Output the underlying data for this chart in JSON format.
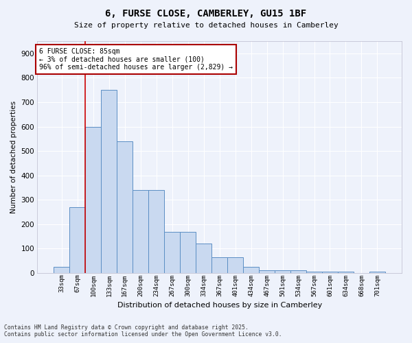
{
  "title1": "6, FURSE CLOSE, CAMBERLEY, GU15 1BF",
  "title2": "Size of property relative to detached houses in Camberley",
  "xlabel": "Distribution of detached houses by size in Camberley",
  "ylabel": "Number of detached properties",
  "categories": [
    "33sqm",
    "67sqm",
    "100sqm",
    "133sqm",
    "167sqm",
    "200sqm",
    "234sqm",
    "267sqm",
    "300sqm",
    "334sqm",
    "367sqm",
    "401sqm",
    "434sqm",
    "467sqm",
    "501sqm",
    "534sqm",
    "567sqm",
    "601sqm",
    "634sqm",
    "668sqm",
    "701sqm"
  ],
  "values": [
    25,
    270,
    600,
    750,
    540,
    340,
    340,
    170,
    170,
    120,
    65,
    65,
    25,
    10,
    10,
    10,
    5,
    5,
    5,
    0,
    5
  ],
  "bar_color": "#c9d9f0",
  "bar_edge_color": "#5b8ec4",
  "red_line_x": 1.5,
  "annotation_title": "6 FURSE CLOSE: 85sqm",
  "annotation_line1": "← 3% of detached houses are smaller (100)",
  "annotation_line2": "96% of semi-detached houses are larger (2,829) →",
  "annotation_box_color": "#ffffff",
  "annotation_box_edge": "#aa0000",
  "background_color": "#eef2fb",
  "grid_color": "#ffffff",
  "footer1": "Contains HM Land Registry data © Crown copyright and database right 2025.",
  "footer2": "Contains public sector information licensed under the Open Government Licence v3.0.",
  "ylim": [
    0,
    950
  ],
  "yticks": [
    0,
    100,
    200,
    300,
    400,
    500,
    600,
    700,
    800,
    900
  ]
}
